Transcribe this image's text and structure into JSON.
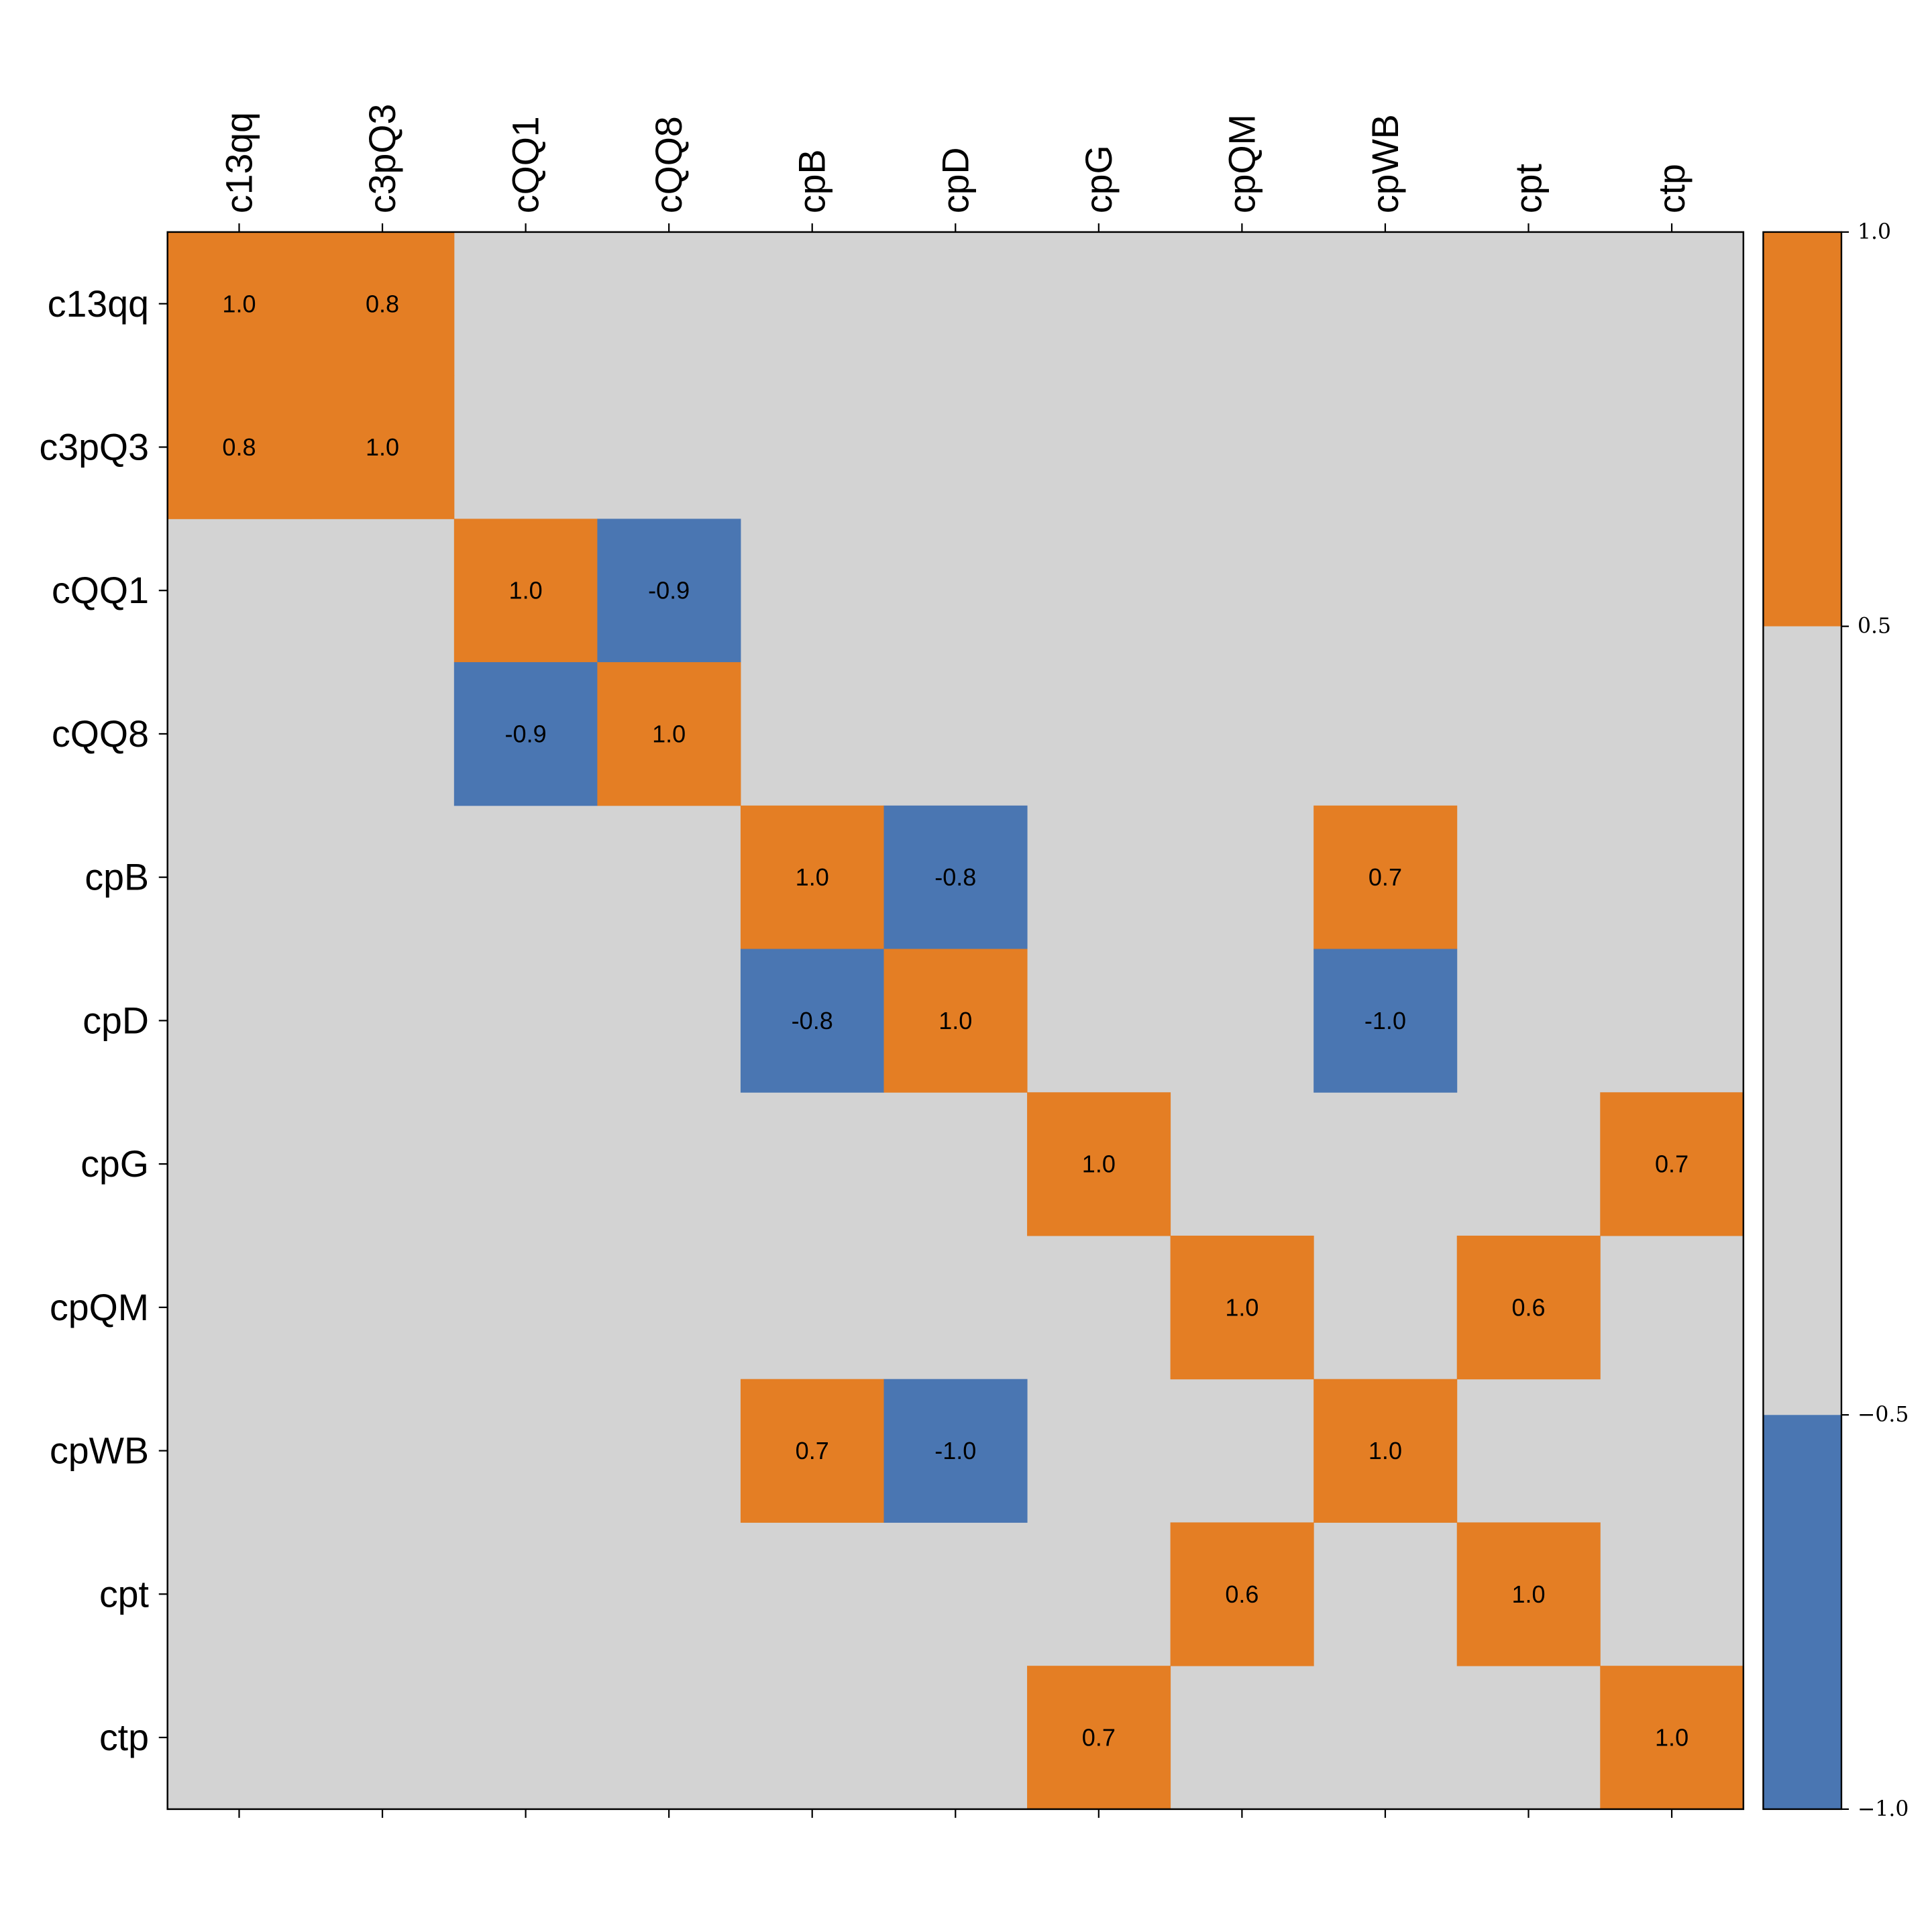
{
  "chart_data": {
    "type": "heatmap",
    "title": "",
    "xlabel": "",
    "ylabel": "",
    "labels": [
      "c13qq",
      "c3pQ3",
      "cQQ1",
      "cQQ8",
      "cpB",
      "cpD",
      "cpG",
      "cpQM",
      "cpWB",
      "cpt",
      "ctp"
    ],
    "cells": [
      {
        "row": "c13qq",
        "col": "c13qq",
        "value": 1.0,
        "text": "1.0"
      },
      {
        "row": "c13qq",
        "col": "c3pQ3",
        "value": 0.8,
        "text": "0.8"
      },
      {
        "row": "c3pQ3",
        "col": "c13qq",
        "value": 0.8,
        "text": "0.8"
      },
      {
        "row": "c3pQ3",
        "col": "c3pQ3",
        "value": 1.0,
        "text": "1.0"
      },
      {
        "row": "cQQ1",
        "col": "cQQ1",
        "value": 1.0,
        "text": "1.0"
      },
      {
        "row": "cQQ1",
        "col": "cQQ8",
        "value": -0.9,
        "text": "-0.9"
      },
      {
        "row": "cQQ8",
        "col": "cQQ1",
        "value": -0.9,
        "text": "-0.9"
      },
      {
        "row": "cQQ8",
        "col": "cQQ8",
        "value": 1.0,
        "text": "1.0"
      },
      {
        "row": "cpB",
        "col": "cpB",
        "value": 1.0,
        "text": "1.0"
      },
      {
        "row": "cpB",
        "col": "cpD",
        "value": -0.8,
        "text": "-0.8"
      },
      {
        "row": "cpB",
        "col": "cpWB",
        "value": 0.7,
        "text": "0.7"
      },
      {
        "row": "cpD",
        "col": "cpB",
        "value": -0.8,
        "text": "-0.8"
      },
      {
        "row": "cpD",
        "col": "cpD",
        "value": 1.0,
        "text": "1.0"
      },
      {
        "row": "cpD",
        "col": "cpWB",
        "value": -1.0,
        "text": "-1.0"
      },
      {
        "row": "cpG",
        "col": "cpG",
        "value": 1.0,
        "text": "1.0"
      },
      {
        "row": "cpG",
        "col": "ctp",
        "value": 0.7,
        "text": "0.7"
      },
      {
        "row": "cpQM",
        "col": "cpQM",
        "value": 1.0,
        "text": "1.0"
      },
      {
        "row": "cpQM",
        "col": "cpt",
        "value": 0.6,
        "text": "0.6"
      },
      {
        "row": "cpWB",
        "col": "cpB",
        "value": 0.7,
        "text": "0.7"
      },
      {
        "row": "cpWB",
        "col": "cpD",
        "value": -1.0,
        "text": "-1.0"
      },
      {
        "row": "cpWB",
        "col": "cpWB",
        "value": 1.0,
        "text": "1.0"
      },
      {
        "row": "cpt",
        "col": "cpQM",
        "value": 0.6,
        "text": "0.6"
      },
      {
        "row": "cpt",
        "col": "cpt",
        "value": 1.0,
        "text": "1.0"
      },
      {
        "row": "ctp",
        "col": "cpG",
        "value": 0.7,
        "text": "0.7"
      },
      {
        "row": "ctp",
        "col": "ctp",
        "value": 1.0,
        "text": "1.0"
      }
    ],
    "colorbar": {
      "range": [
        -1.0,
        1.0
      ],
      "bounds": [
        -1.0,
        -0.5,
        0.5,
        1.0
      ],
      "colors": [
        "#4a76b2",
        "#d3d3d3",
        "#e47e24"
      ],
      "ticks": [
        {
          "value": 1.0,
          "text": "1.0"
        },
        {
          "value": 0.5,
          "text": "0.5"
        },
        {
          "value": -0.5,
          "text": "−0.5"
        },
        {
          "value": -1.0,
          "text": "−1.0"
        }
      ]
    },
    "background_color": "#d3d3d3"
  }
}
